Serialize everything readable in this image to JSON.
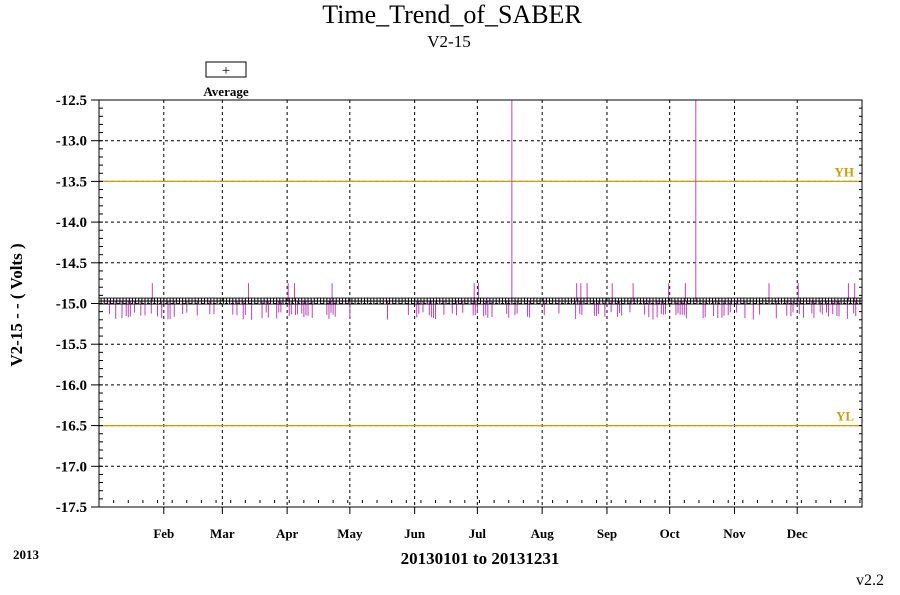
{
  "chart_data": {
    "type": "line",
    "title": "Time_Trend_of_SABER",
    "subtitle": "V2-15",
    "ylabel": "V2-15  - - ( Volts )",
    "xlabel": "20130101 to 20131231",
    "year_label": "2013",
    "version": "v2.2",
    "legend": {
      "entry": "Average",
      "symbol": "+",
      "placement": "top-left"
    },
    "ylim": [
      -17.5,
      -12.5
    ],
    "yticks": [
      "-12.5",
      "-13.0",
      "-13.5",
      "-14.0",
      "-14.5",
      "-15.0",
      "-15.5",
      "-16.0",
      "-16.5",
      "-17.0",
      "-17.5"
    ],
    "xlim": [
      "2013-01-01",
      "2013-12-31"
    ],
    "month_ticks": [
      {
        "label": "Feb",
        "date": "2013-02-01"
      },
      {
        "label": "Mar",
        "date": "2013-03-01"
      },
      {
        "label": "Apr",
        "date": "2013-04-01"
      },
      {
        "label": "May",
        "date": "2013-05-01"
      },
      {
        "label": "Jun",
        "date": "2013-06-01"
      },
      {
        "label": "Jul",
        "date": "2013-07-01"
      },
      {
        "label": "Aug",
        "date": "2013-08-01"
      },
      {
        "label": "Sep",
        "date": "2013-09-01"
      },
      {
        "label": "Oct",
        "date": "2013-10-01"
      },
      {
        "label": "Nov",
        "date": "2013-11-01"
      },
      {
        "label": "Dec",
        "date": "2013-12-01"
      }
    ],
    "grid": true,
    "limits": [
      {
        "name": "YH",
        "value": -13.5,
        "color": "#c8a000"
      },
      {
        "name": "YL",
        "value": -16.5,
        "color": "#c8a000"
      }
    ],
    "series": [
      {
        "name": "Average",
        "color": "#c040c0",
        "marker_color": "#000000",
        "baseline": -14.97,
        "spikes": [
          {
            "date": "2013-07-17",
            "value": -12.5
          },
          {
            "date": "2013-10-13",
            "value": -12.5
          }
        ],
        "high_excursions": [
          "2013-01-26",
          "2013-03-13",
          "2013-04-01",
          "2013-04-04",
          "2013-04-22",
          "2013-06-29",
          "2013-07-01",
          "2013-08-17",
          "2013-08-19",
          "2013-08-22",
          "2013-09-03",
          "2013-09-13",
          "2013-09-30",
          "2013-10-08",
          "2013-11-17",
          "2013-12-01",
          "2013-12-25",
          "2013-12-28"
        ],
        "low_min": -15.2
      }
    ]
  }
}
